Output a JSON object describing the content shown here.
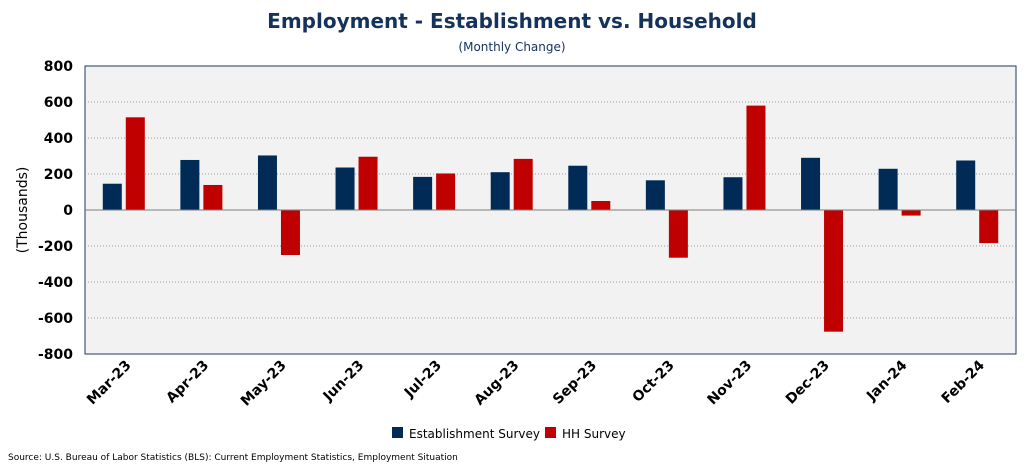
{
  "chart_data": {
    "type": "bar",
    "title": "Employment - Establishment vs. Household",
    "subtitle": "(Monthly Change)",
    "ylabel": "(Thousands)",
    "xlabel": "",
    "ylim": [
      -800,
      800
    ],
    "yticks": [
      800,
      600,
      400,
      200,
      0,
      -200,
      -400,
      -600,
      -800
    ],
    "ytick_labels": [
      "800",
      "600",
      "400",
      "200",
      "0",
      "-200",
      "-400",
      "-600",
      "-800"
    ],
    "grid": true,
    "legend_position": "bottom-center",
    "categories": [
      "Mar-23",
      "Apr-23",
      "May-23",
      "Jun-23",
      "Jul-23",
      "Aug-23",
      "Sep-23",
      "Oct-23",
      "Nov-23",
      "Dec-23",
      "Jan-24",
      "Feb-24"
    ],
    "series": [
      {
        "name": "Establishment Survey",
        "color": "#002b57",
        "values": [
          146,
          278,
          303,
          236,
          184,
          210,
          246,
          165,
          182,
          290,
          229,
          275
        ]
      },
      {
        "name": "HH Survey",
        "color": "#c00000",
        "values": [
          515,
          139,
          -250,
          296,
          203,
          284,
          50,
          -265,
          580,
          -676,
          -31,
          -184
        ]
      }
    ],
    "source": "Source: U.S. Bureau of Labor Statistics (BLS): Current Employment Statistics, Employment Situation"
  }
}
